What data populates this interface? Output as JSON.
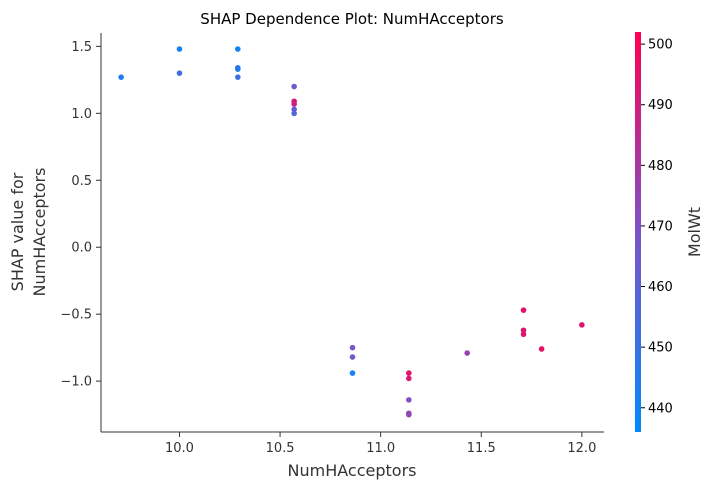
{
  "chart_data": {
    "type": "scatter",
    "title": "SHAP Dependence Plot: NumHAcceptors",
    "xlabel": "NumHAcceptors",
    "ylabel_lines": [
      "SHAP value for",
      "NumHAcceptors"
    ],
    "xlim": [
      9.61,
      12.11
    ],
    "ylim": [
      -1.38,
      1.6
    ],
    "x_ticks": [
      "10.0",
      "10.5",
      "11.0",
      "11.5",
      "12.0"
    ],
    "y_ticks": [
      "1.5",
      "1.0",
      "0.5",
      "0.0",
      "−0.5",
      "−1.0"
    ],
    "colorbar": {
      "label": "MolWt",
      "range": [
        436,
        502
      ],
      "ticks": [
        "440",
        "450",
        "460",
        "470",
        "480",
        "490",
        "500"
      ],
      "color_low": "#008afb",
      "color_high": "#ff0052"
    },
    "points": [
      {
        "x": 9.71,
        "y": 1.27,
        "c": 444
      },
      {
        "x": 10.0,
        "y": 1.48,
        "c": 442
      },
      {
        "x": 10.0,
        "y": 1.3,
        "c": 454
      },
      {
        "x": 10.29,
        "y": 1.48,
        "c": 441
      },
      {
        "x": 10.29,
        "y": 1.34,
        "c": 446
      },
      {
        "x": 10.29,
        "y": 1.33,
        "c": 445
      },
      {
        "x": 10.29,
        "y": 1.27,
        "c": 452
      },
      {
        "x": 10.57,
        "y": 1.2,
        "c": 466
      },
      {
        "x": 10.57,
        "y": 1.09,
        "c": 492
      },
      {
        "x": 10.57,
        "y": 1.07,
        "c": 490
      },
      {
        "x": 10.57,
        "y": 1.03,
        "c": 462
      },
      {
        "x": 10.57,
        "y": 1.0,
        "c": 458
      },
      {
        "x": 10.86,
        "y": -0.75,
        "c": 468
      },
      {
        "x": 10.86,
        "y": -0.82,
        "c": 467
      },
      {
        "x": 10.86,
        "y": -0.94,
        "c": 442
      },
      {
        "x": 11.14,
        "y": -0.94,
        "c": 494
      },
      {
        "x": 11.14,
        "y": -0.98,
        "c": 492
      },
      {
        "x": 11.14,
        "y": -1.14,
        "c": 469
      },
      {
        "x": 11.14,
        "y": -1.24,
        "c": 476
      },
      {
        "x": 11.14,
        "y": -1.25,
        "c": 474
      },
      {
        "x": 11.43,
        "y": -0.79,
        "c": 475
      },
      {
        "x": 11.71,
        "y": -0.47,
        "c": 495
      },
      {
        "x": 11.71,
        "y": -0.62,
        "c": 493
      },
      {
        "x": 11.71,
        "y": -0.65,
        "c": 494
      },
      {
        "x": 11.8,
        "y": -0.76,
        "c": 496
      },
      {
        "x": 12.0,
        "y": -0.58,
        "c": 494
      }
    ]
  }
}
